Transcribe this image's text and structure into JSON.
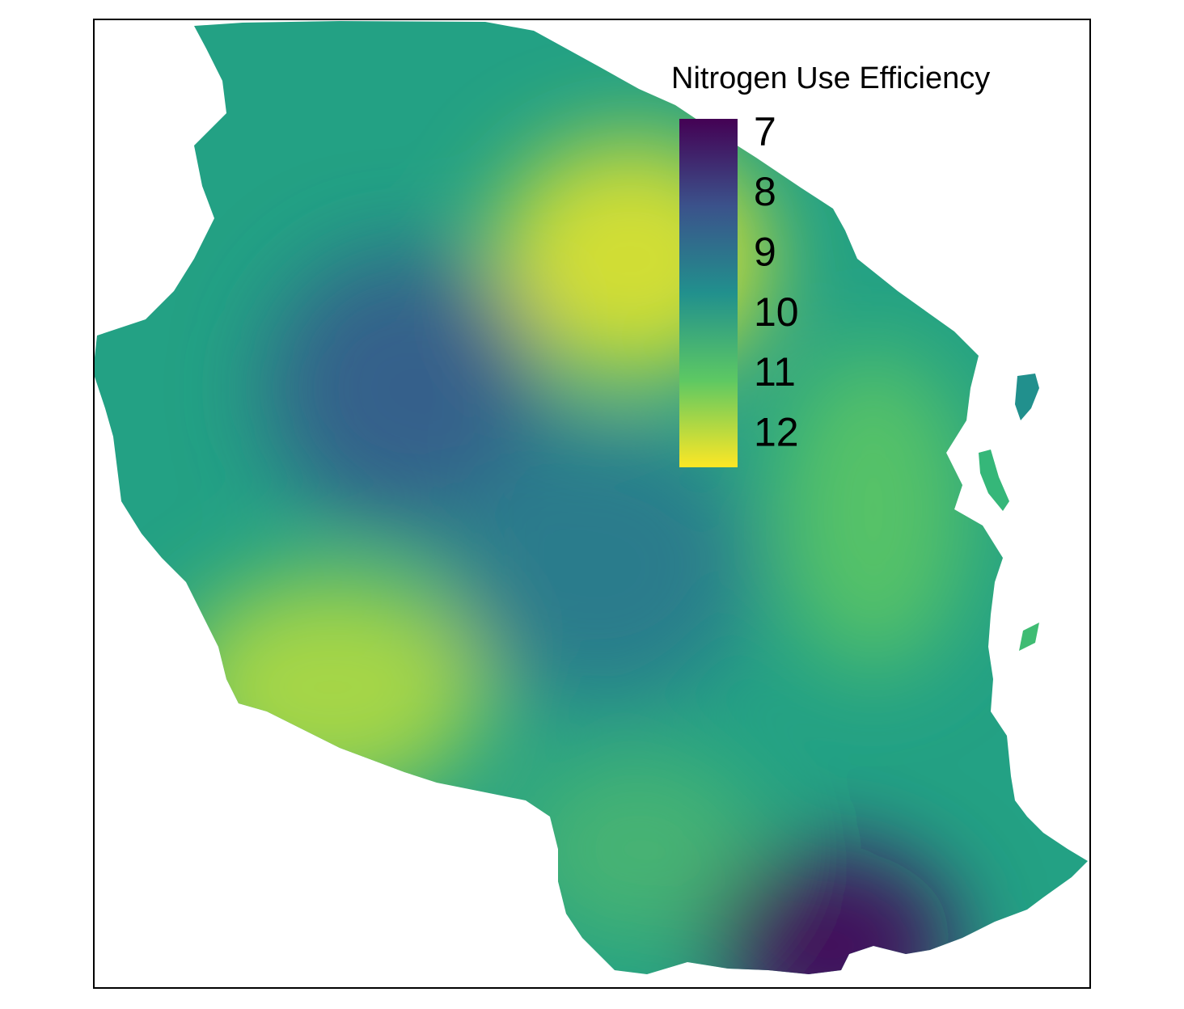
{
  "map": {
    "frame_color": "#000000",
    "background_color": "#ffffff",
    "hotspots": [
      {
        "name": "north-center-high",
        "value": 12.2
      },
      {
        "name": "southwest-high",
        "value": 11.8
      },
      {
        "name": "east-coast-high",
        "value": 11.0
      },
      {
        "name": "south-center-mid",
        "value": 10.6
      },
      {
        "name": "west-center-low",
        "value": 8.6
      },
      {
        "name": "center-low",
        "value": 9.2
      },
      {
        "name": "southeast-very-low",
        "value": 7.0
      }
    ]
  },
  "legend": {
    "title": "Nitrogen Use Efficiency",
    "ticks": [
      {
        "label": "7",
        "value": 7
      },
      {
        "label": "8",
        "value": 8
      },
      {
        "label": "9",
        "value": 9
      },
      {
        "label": "10",
        "value": 10
      },
      {
        "label": "11",
        "value": 11
      },
      {
        "label": "12",
        "value": 12
      }
    ],
    "range": [
      6.8,
      12.6
    ],
    "colors": [
      "#440154",
      "#3b528b",
      "#21908d",
      "#5dc863",
      "#fde725"
    ]
  }
}
